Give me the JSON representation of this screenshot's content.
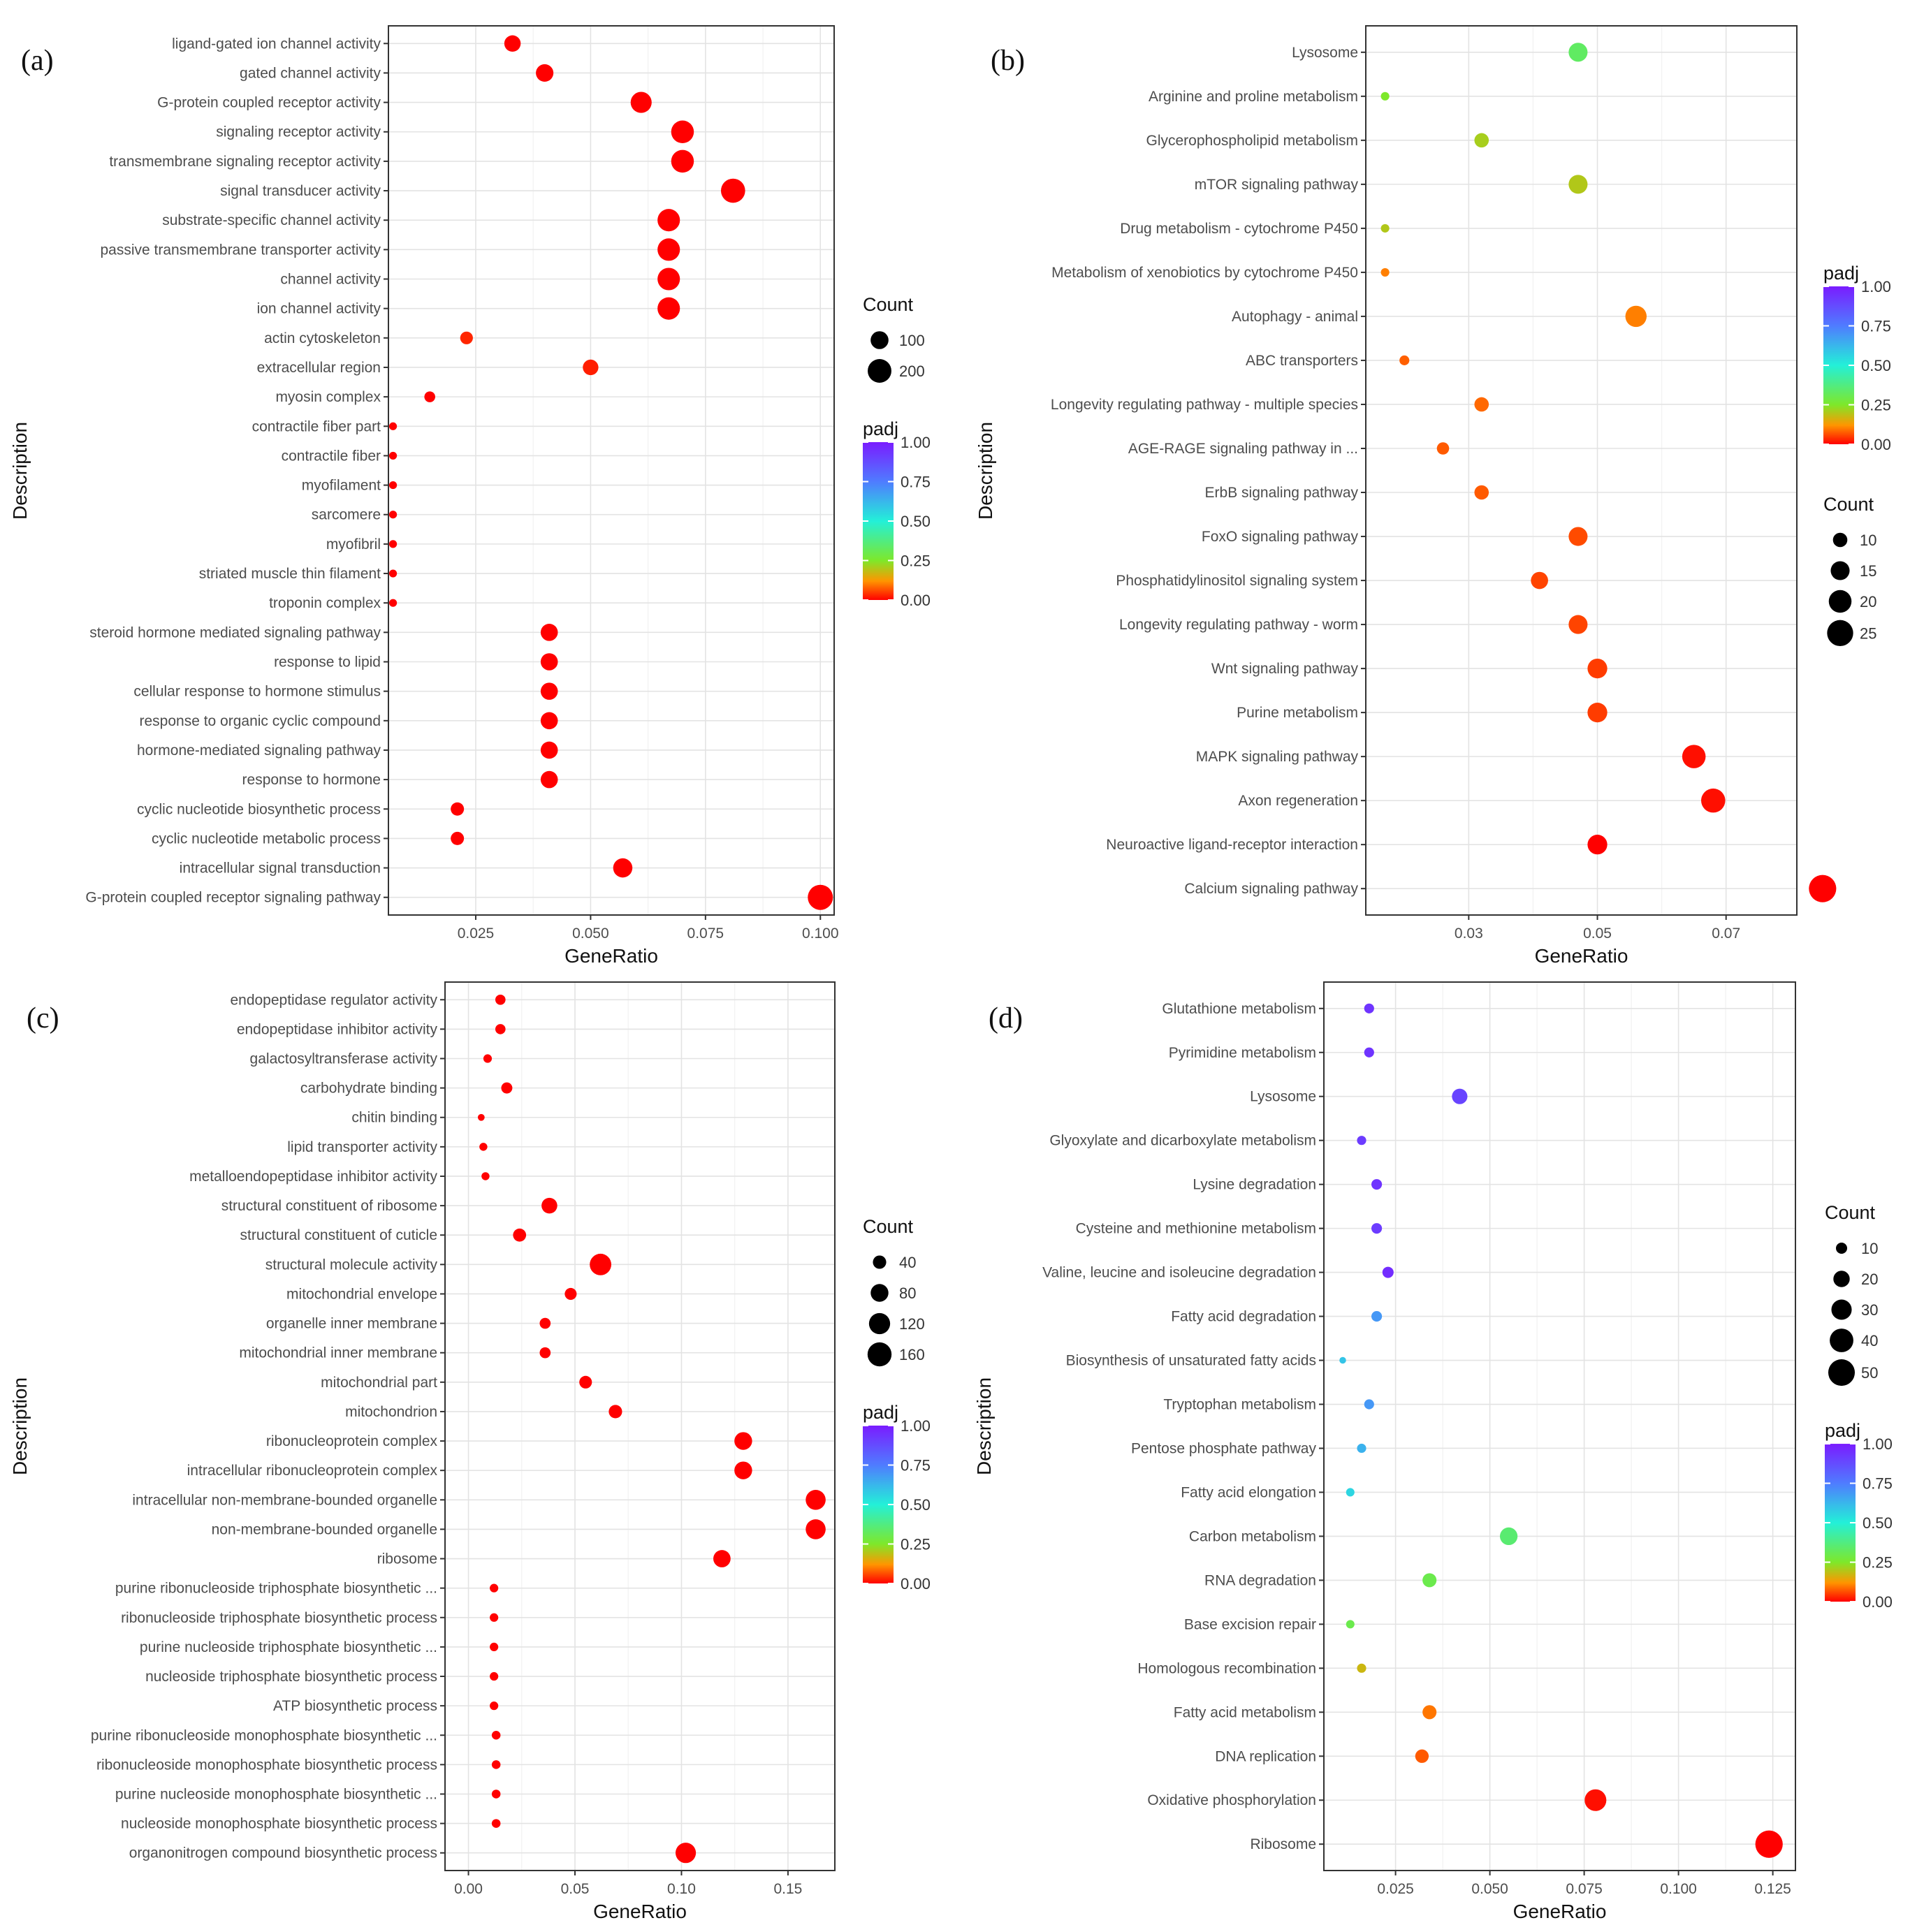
{
  "chart_data": [
    {
      "type": "scatter",
      "panel_label": "(a)",
      "xlabel": "GeneRatio",
      "ylabel": "Description",
      "xlim": [
        0.006,
        0.103
      ],
      "xticks": [
        0.025,
        0.05,
        0.075,
        0.1
      ],
      "xtick_labels": [
        "0.025",
        "0.050",
        "0.075",
        "0.100"
      ],
      "grid": true,
      "legend_order": [
        "count",
        "padj"
      ],
      "count_legend": {
        "title": "Count",
        "values": [
          100,
          200
        ],
        "labels": [
          "100",
          "200"
        ]
      },
      "padj_legend": {
        "title": "padj",
        "ticks": [
          1.0,
          0.75,
          0.5,
          0.25,
          0.0
        ],
        "labels": [
          "1.00",
          "0.75",
          "0.50",
          "0.25",
          "0.00"
        ]
      },
      "size_range": {
        "count": [
          5,
          230
        ],
        "radius_px": [
          5,
          18
        ]
      },
      "points": [
        {
          "label": "ligand-gated ion channel activity",
          "x": 0.033,
          "count": 80,
          "padj": 0.0
        },
        {
          "label": "gated channel activity",
          "x": 0.04,
          "count": 95,
          "padj": 0.0
        },
        {
          "label": "G-protein coupled receptor activity",
          "x": 0.061,
          "count": 150,
          "padj": 0.0
        },
        {
          "label": "signaling receptor activity",
          "x": 0.07,
          "count": 180,
          "padj": 0.0
        },
        {
          "label": "transmembrane signaling receptor activity",
          "x": 0.07,
          "count": 180,
          "padj": 0.0
        },
        {
          "label": "signal transducer activity",
          "x": 0.081,
          "count": 210,
          "padj": 0.0
        },
        {
          "label": "substrate-specific channel activity",
          "x": 0.067,
          "count": 175,
          "padj": 0.0
        },
        {
          "label": "passive transmembrane transporter activity",
          "x": 0.067,
          "count": 175,
          "padj": 0.0
        },
        {
          "label": "channel activity",
          "x": 0.067,
          "count": 175,
          "padj": 0.0
        },
        {
          "label": "ion channel activity",
          "x": 0.067,
          "count": 175,
          "padj": 0.0
        },
        {
          "label": "actin cytoskeleton",
          "x": 0.023,
          "count": 40,
          "padj": 0.05
        },
        {
          "label": "extracellular region",
          "x": 0.05,
          "count": 70,
          "padj": 0.04
        },
        {
          "label": "myosin complex",
          "x": 0.015,
          "count": 25,
          "padj": 0.0
        },
        {
          "label": "contractile fiber part",
          "x": 0.007,
          "count": 8,
          "padj": 0.0
        },
        {
          "label": "contractile fiber",
          "x": 0.007,
          "count": 8,
          "padj": 0.0
        },
        {
          "label": "myofilament",
          "x": 0.007,
          "count": 8,
          "padj": 0.0
        },
        {
          "label": "sarcomere",
          "x": 0.007,
          "count": 8,
          "padj": 0.0
        },
        {
          "label": "myofibril",
          "x": 0.007,
          "count": 8,
          "padj": 0.0
        },
        {
          "label": "striated muscle thin filament",
          "x": 0.007,
          "count": 8,
          "padj": 0.0
        },
        {
          "label": "troponin complex",
          "x": 0.007,
          "count": 8,
          "padj": 0.0
        },
        {
          "label": "steroid hormone mediated signaling pathway",
          "x": 0.041,
          "count": 90,
          "padj": 0.0
        },
        {
          "label": "response to lipid",
          "x": 0.041,
          "count": 90,
          "padj": 0.0
        },
        {
          "label": "cellular response to hormone stimulus",
          "x": 0.041,
          "count": 90,
          "padj": 0.0
        },
        {
          "label": "response to organic cyclic compound",
          "x": 0.041,
          "count": 90,
          "padj": 0.0
        },
        {
          "label": "hormone-mediated signaling pathway",
          "x": 0.041,
          "count": 90,
          "padj": 0.0
        },
        {
          "label": "response to hormone",
          "x": 0.041,
          "count": 90,
          "padj": 0.0
        },
        {
          "label": "cyclic nucleotide biosynthetic process",
          "x": 0.021,
          "count": 45,
          "padj": 0.0
        },
        {
          "label": "cyclic nucleotide metabolic process",
          "x": 0.021,
          "count": 45,
          "padj": 0.0
        },
        {
          "label": "intracellular signal transduction",
          "x": 0.057,
          "count": 120,
          "padj": 0.0
        },
        {
          "label": "G-protein coupled receptor signaling pathway",
          "x": 0.1,
          "count": 230,
          "padj": 0.0
        }
      ]
    },
    {
      "type": "scatter",
      "panel_label": "(b)",
      "xlabel": "GeneRatio",
      "ylabel": "Description",
      "xlim": [
        0.014,
        0.081
      ],
      "xticks": [
        0.03,
        0.05,
        0.07
      ],
      "xtick_labels": [
        "0.03",
        "0.05",
        "0.07"
      ],
      "grid": true,
      "legend_order": [
        "padj",
        "count"
      ],
      "count_legend": {
        "title": "Count",
        "values": [
          10,
          15,
          20,
          25
        ],
        "labels": [
          "10",
          "15",
          "20",
          "25"
        ]
      },
      "padj_legend": {
        "title": "padj",
        "ticks": [
          1.0,
          0.75,
          0.5,
          0.25,
          0.0
        ],
        "labels": [
          "1.00",
          "0.75",
          "0.50",
          "0.25",
          "0.00"
        ]
      },
      "size_range": {
        "count": [
          4,
          28
        ],
        "radius_px": [
          5,
          20
        ]
      },
      "points": [
        {
          "label": "Lysosome",
          "x": 0.047,
          "count": 15,
          "padj": 0.58
        },
        {
          "label": "Arginine and proline metabolism",
          "x": 0.017,
          "count": 5,
          "padj": 0.5
        },
        {
          "label": "Glycerophospholipid metabolism",
          "x": 0.032,
          "count": 10,
          "padj": 0.42
        },
        {
          "label": "mTOR signaling pathway",
          "x": 0.047,
          "count": 15,
          "padj": 0.4
        },
        {
          "label": "Drug metabolism - cytochrome P450",
          "x": 0.017,
          "count": 5,
          "padj": 0.4
        },
        {
          "label": "Metabolism of xenobiotics by cytochrome P450",
          "x": 0.017,
          "count": 5,
          "padj": 0.2
        },
        {
          "label": "Autophagy - animal",
          "x": 0.056,
          "count": 18,
          "padj": 0.2
        },
        {
          "label": "ABC transporters",
          "x": 0.02,
          "count": 6,
          "padj": 0.13
        },
        {
          "label": "Longevity regulating pathway - multiple species",
          "x": 0.032,
          "count": 10,
          "padj": 0.15
        },
        {
          "label": "AGE-RAGE signaling pathway in ...",
          "x": 0.026,
          "count": 8,
          "padj": 0.12
        },
        {
          "label": "ErbB signaling pathway",
          "x": 0.032,
          "count": 10,
          "padj": 0.12
        },
        {
          "label": "FoxO signaling pathway",
          "x": 0.047,
          "count": 15,
          "padj": 0.1
        },
        {
          "label": "Phosphatidylinositol signaling system",
          "x": 0.041,
          "count": 13,
          "padj": 0.09
        },
        {
          "label": "Longevity regulating pathway - worm",
          "x": 0.047,
          "count": 15,
          "padj": 0.09
        },
        {
          "label": "Wnt signaling pathway",
          "x": 0.05,
          "count": 16,
          "padj": 0.08
        },
        {
          "label": "Purine metabolism",
          "x": 0.05,
          "count": 16,
          "padj": 0.08
        },
        {
          "label": "MAPK signaling pathway",
          "x": 0.065,
          "count": 21,
          "padj": 0.02
        },
        {
          "label": "Axon regeneration",
          "x": 0.068,
          "count": 22,
          "padj": 0.02
        },
        {
          "label": "Neuroactive ligand-receptor interaction",
          "x": 0.05,
          "count": 16,
          "padj": 0.0
        },
        {
          "label": "Calcium signaling pathway",
          "x": 0.085,
          "count": 27,
          "padj": 0.0
        }
      ]
    },
    {
      "type": "scatter",
      "panel_label": "(c)",
      "xlabel": "GeneRatio",
      "ylabel": "Description",
      "xlim": [
        -0.011,
        0.172
      ],
      "xticks": [
        0.0,
        0.05,
        0.1,
        0.15
      ],
      "xtick_labels": [
        "0.00",
        "0.05",
        "0.10",
        "0.15"
      ],
      "grid": true,
      "legend_order": [
        "count",
        "padj"
      ],
      "count_legend": {
        "title": "Count",
        "values": [
          40,
          80,
          120,
          160
        ],
        "labels": [
          "40",
          "80",
          "120",
          "160"
        ]
      },
      "padj_legend": {
        "title": "padj",
        "ticks": [
          1.0,
          0.75,
          0.5,
          0.25,
          0.0
        ],
        "labels": [
          "1.00",
          "0.75",
          "0.50",
          "0.25",
          "0.00"
        ]
      },
      "size_range": {
        "count": [
          3,
          200
        ],
        "radius_px": [
          4,
          19
        ]
      },
      "points": [
        {
          "label": "endopeptidase regulator activity",
          "x": 0.015,
          "count": 20,
          "padj": 0.0
        },
        {
          "label": "endopeptidase inhibitor activity",
          "x": 0.015,
          "count": 20,
          "padj": 0.0
        },
        {
          "label": "galactosyltransferase activity",
          "x": 0.009,
          "count": 12,
          "padj": 0.0
        },
        {
          "label": "carbohydrate binding",
          "x": 0.018,
          "count": 25,
          "padj": 0.0
        },
        {
          "label": "chitin binding",
          "x": 0.006,
          "count": 6,
          "padj": 0.0
        },
        {
          "label": "lipid transporter activity",
          "x": 0.007,
          "count": 10,
          "padj": 0.0
        },
        {
          "label": "metalloendopeptidase inhibitor activity",
          "x": 0.008,
          "count": 10,
          "padj": 0.0
        },
        {
          "label": "structural constituent of ribosome",
          "x": 0.038,
          "count": 60,
          "padj": 0.0
        },
        {
          "label": "structural constituent of cuticle",
          "x": 0.024,
          "count": 38,
          "padj": 0.0
        },
        {
          "label": "structural molecule activity",
          "x": 0.062,
          "count": 125,
          "padj": 0.0
        },
        {
          "label": "mitochondrial envelope",
          "x": 0.048,
          "count": 30,
          "padj": 0.0
        },
        {
          "label": "organelle inner membrane",
          "x": 0.036,
          "count": 24,
          "padj": 0.0
        },
        {
          "label": "mitochondrial inner membrane",
          "x": 0.036,
          "count": 24,
          "padj": 0.0
        },
        {
          "label": "mitochondrial part",
          "x": 0.055,
          "count": 35,
          "padj": 0.0
        },
        {
          "label": "mitochondrion",
          "x": 0.069,
          "count": 40,
          "padj": 0.0
        },
        {
          "label": "ribonucleoprotein complex",
          "x": 0.129,
          "count": 80,
          "padj": 0.0
        },
        {
          "label": "intracellular ribonucleoprotein complex",
          "x": 0.129,
          "count": 80,
          "padj": 0.0
        },
        {
          "label": "intracellular non-membrane-bounded organelle",
          "x": 0.163,
          "count": 105,
          "padj": 0.0
        },
        {
          "label": "non-membrane-bounded organelle",
          "x": 0.163,
          "count": 105,
          "padj": 0.0
        },
        {
          "label": "ribosome",
          "x": 0.119,
          "count": 75,
          "padj": 0.0
        },
        {
          "label": "purine ribonucleoside triphosphate biosynthetic ...",
          "x": 0.012,
          "count": 12,
          "padj": 0.0
        },
        {
          "label": "ribonucleoside triphosphate biosynthetic process",
          "x": 0.012,
          "count": 12,
          "padj": 0.0
        },
        {
          "label": "purine nucleoside triphosphate biosynthetic ...",
          "x": 0.012,
          "count": 12,
          "padj": 0.0
        },
        {
          "label": "nucleoside triphosphate biosynthetic process",
          "x": 0.012,
          "count": 12,
          "padj": 0.0
        },
        {
          "label": "ATP biosynthetic process",
          "x": 0.012,
          "count": 12,
          "padj": 0.0
        },
        {
          "label": "purine ribonucleoside monophosphate biosynthetic ...",
          "x": 0.013,
          "count": 13,
          "padj": 0.0
        },
        {
          "label": "ribonucleoside monophosphate biosynthetic process",
          "x": 0.013,
          "count": 13,
          "padj": 0.0
        },
        {
          "label": "purine nucleoside monophosphate biosynthetic ...",
          "x": 0.013,
          "count": 13,
          "padj": 0.0
        },
        {
          "label": "nucleoside monophosphate biosynthetic process",
          "x": 0.013,
          "count": 13,
          "padj": 0.0
        },
        {
          "label": "organonitrogen compound biosynthetic process",
          "x": 0.102,
          "count": 110,
          "padj": 0.0
        }
      ]
    },
    {
      "type": "scatter",
      "panel_label": "(d)",
      "xlabel": "GeneRatio",
      "ylabel": "Description",
      "xlim": [
        0.006,
        0.131
      ],
      "xticks": [
        0.025,
        0.05,
        0.075,
        0.1,
        0.125
      ],
      "xtick_labels": [
        "0.025",
        "0.050",
        "0.075",
        "0.100",
        "0.125"
      ],
      "grid": true,
      "legend_order": [
        "count",
        "padj"
      ],
      "count_legend": {
        "title": "Count",
        "values": [
          10,
          20,
          30,
          40,
          50
        ],
        "labels": [
          "10",
          "20",
          "30",
          "40",
          "50"
        ]
      },
      "padj_legend": {
        "title": "padj",
        "ticks": [
          1.0,
          0.75,
          0.5,
          0.25,
          0.0
        ],
        "labels": [
          "1.00",
          "0.75",
          "0.50",
          "0.25",
          "0.00"
        ]
      },
      "size_range": {
        "count": [
          3,
          55
        ],
        "radius_px": [
          4,
          20
        ]
      },
      "points": [
        {
          "label": "Glutathione metabolism",
          "x": 0.018,
          "count": 8,
          "padj": 0.97
        },
        {
          "label": "Pyrimidine metabolism",
          "x": 0.018,
          "count": 8,
          "padj": 0.97
        },
        {
          "label": "Lysosome",
          "x": 0.042,
          "count": 18,
          "padj": 0.95
        },
        {
          "label": "Glyoxylate and dicarboxylate metabolism",
          "x": 0.016,
          "count": 7,
          "padj": 0.96
        },
        {
          "label": "Lysine degradation",
          "x": 0.02,
          "count": 9,
          "padj": 0.97
        },
        {
          "label": "Cysteine and methionine metabolism",
          "x": 0.02,
          "count": 9,
          "padj": 0.96
        },
        {
          "label": "Valine, leucine and isoleucine degradation",
          "x": 0.023,
          "count": 10,
          "padj": 0.98
        },
        {
          "label": "Fatty acid degradation",
          "x": 0.02,
          "count": 9,
          "padj": 0.85
        },
        {
          "label": "Biosynthesis of unsaturated fatty acids",
          "x": 0.011,
          "count": 4,
          "padj": 0.8
        },
        {
          "label": "Tryptophan metabolism",
          "x": 0.018,
          "count": 8,
          "padj": 0.85
        },
        {
          "label": "Pentose phosphate pathway",
          "x": 0.016,
          "count": 7,
          "padj": 0.82
        },
        {
          "label": "Fatty acid elongation",
          "x": 0.013,
          "count": 6,
          "padj": 0.78
        },
        {
          "label": "Carbon metabolism",
          "x": 0.055,
          "count": 23,
          "padj": 0.6
        },
        {
          "label": "RNA degradation",
          "x": 0.034,
          "count": 15,
          "padj": 0.55
        },
        {
          "label": "Base excision repair",
          "x": 0.013,
          "count": 6,
          "padj": 0.55
        },
        {
          "label": "Homologous recombination",
          "x": 0.016,
          "count": 7,
          "padj": 0.35
        },
        {
          "label": "Fatty acid metabolism",
          "x": 0.034,
          "count": 15,
          "padj": 0.18
        },
        {
          "label": "DNA replication",
          "x": 0.032,
          "count": 14,
          "padj": 0.12
        },
        {
          "label": "Oxidative phosphorylation",
          "x": 0.078,
          "count": 34,
          "padj": 0.02
        },
        {
          "label": "Ribosome",
          "x": 0.124,
          "count": 53,
          "padj": 0.0
        }
      ]
    }
  ]
}
